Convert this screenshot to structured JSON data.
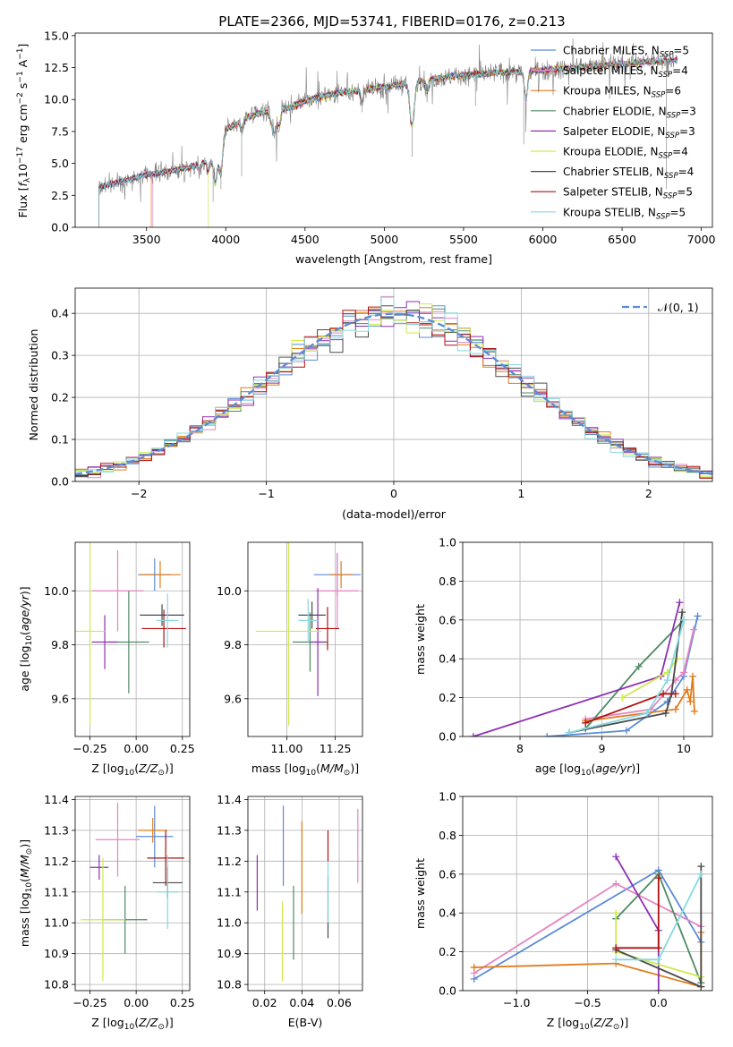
{
  "title": "PLATE=2366, MJD=53741, FIBERID=0176, z=0.213",
  "models": [
    {
      "name": "Chabrier MILES",
      "n": "5",
      "color": "#5b8bd9"
    },
    {
      "name": "Salpeter MILES",
      "n": "4",
      "color": "#e486c0"
    },
    {
      "name": "Kroupa MILES",
      "n": "6",
      "color": "#e07b1a"
    },
    {
      "name": "Chabrier ELODIE",
      "n": "3",
      "color": "#4e8a63"
    },
    {
      "name": "Salpeter ELODIE",
      "n": "3",
      "color": "#8e30b2"
    },
    {
      "name": "Kroupa ELODIE",
      "n": "4",
      "color": "#cfe94a"
    },
    {
      "name": "Chabrier STELIB",
      "n": "4",
      "color": "#4a4a4a"
    },
    {
      "name": "Salpeter STELIB",
      "n": "5",
      "color": "#b01010"
    },
    {
      "name": "Kroupa STELIB",
      "n": "5",
      "color": "#86d8e0"
    }
  ],
  "chart_data": [
    {
      "id": "spectrum",
      "type": "line",
      "xlabel": "wavelength [Angstrom, rest frame]",
      "ylabel": "Flux [f_λ 10^-17 erg cm^-2 s^-1 A^-1]",
      "xlim": [
        3050,
        7070
      ],
      "ylim": [
        0,
        15.2
      ],
      "xticks": [
        3500,
        4000,
        4500,
        5000,
        5500,
        6000,
        6500,
        7000
      ],
      "yticks": [
        0.0,
        2.5,
        5.0,
        7.5,
        10.0,
        12.5,
        15.0
      ],
      "legend": "upper right",
      "grid": false,
      "data_color": "#808080",
      "data_range": [
        3200,
        6850
      ],
      "continuum_wave": [
        3200,
        3300,
        3400,
        3500,
        3600,
        3700,
        3800,
        3900,
        3950,
        4000,
        4100,
        4200,
        4300,
        4400,
        4500,
        4700,
        4900,
        5100,
        5300,
        5500,
        5700,
        5900,
        6100,
        6300,
        6500,
        6700,
        6850
      ],
      "continuum_flux": [
        3.1,
        3.5,
        3.8,
        4.1,
        4.3,
        4.5,
        4.8,
        5.2,
        5.3,
        7.6,
        8.4,
        8.9,
        9.2,
        9.3,
        9.9,
        10.5,
        10.8,
        11.2,
        11.6,
        11.9,
        12.1,
        12.2,
        12.4,
        12.6,
        12.8,
        13.0,
        13.1
      ],
      "model_start": [
        3200,
        3540,
        3530,
        3200,
        3200,
        3890,
        3200,
        3200,
        3200
      ],
      "model_end": [
        6850,
        6850,
        6780,
        6850,
        6850,
        6780,
        6850,
        6850,
        6850
      ]
    },
    {
      "id": "residuals",
      "type": "histogram",
      "xlabel": "(data-model)/error",
      "ylabel": "Normed distribution",
      "xlim": [
        -2.5,
        2.5
      ],
      "ylim": [
        0,
        0.46
      ],
      "xticks": [
        -2,
        -1,
        0,
        1,
        2
      ],
      "yticks": [
        0.0,
        0.1,
        0.2,
        0.3,
        0.4
      ],
      "bin_width": 0.1,
      "grid": true,
      "reference_label": "𝒩(0, 1)",
      "reference_color": "#5b8bd9",
      "legend": "upper right"
    },
    {
      "id": "age_vs_Z",
      "type": "errorbar",
      "xlabel": "Z [log10(Z/Z⊙)]",
      "ylabel": "age  [log10(age/yr)]",
      "xlim": [
        -0.33,
        0.29
      ],
      "ylim": [
        9.46,
        10.18
      ],
      "xticks": [
        -0.25,
        0.0,
        0.25
      ],
      "yticks": [
        9.6,
        9.8,
        10.0
      ],
      "grid": true,
      "points": [
        {
          "x": 0.1,
          "y": 10.06,
          "xerr": 0.09,
          "yerr": 0.06
        },
        {
          "x": -0.1,
          "y": 10.0,
          "xerr": 0.14,
          "yerr": 0.15
        },
        {
          "x": 0.13,
          "y": 10.06,
          "xerr": 0.11,
          "yerr": 0.05
        },
        {
          "x": -0.04,
          "y": 9.81,
          "xerr": 0.11,
          "yerr": 0.19
        },
        {
          "x": -0.17,
          "y": 9.81,
          "xerr": 0.07,
          "yerr": 0.1
        },
        {
          "x": -0.25,
          "y": 9.85,
          "xerr": 0.08,
          "yerr": 0.35
        },
        {
          "x": 0.14,
          "y": 9.91,
          "xerr": 0.12,
          "yerr": 0.04
        },
        {
          "x": 0.15,
          "y": 9.86,
          "xerr": 0.12,
          "yerr": 0.07
        },
        {
          "x": 0.17,
          "y": 9.89,
          "xerr": 0.06,
          "yerr": 0.1
        }
      ]
    },
    {
      "id": "age_vs_mass",
      "type": "errorbar",
      "xlabel": "mass [log10(M/M⊙)]",
      "ylabel": "",
      "xlim": [
        10.8,
        11.39
      ],
      "ylim": [
        9.46,
        10.18
      ],
      "xticks": [
        11.0,
        11.25
      ],
      "yticks": [
        9.6,
        9.8,
        10.0
      ],
      "grid": true,
      "points": [
        {
          "x": 11.26,
          "y": 10.06,
          "xerr": 0.12,
          "yerr": 0.08
        },
        {
          "x": 11.26,
          "y": 10.0,
          "xerr": 0.11,
          "yerr": 0.14
        },
        {
          "x": 11.28,
          "y": 10.06,
          "xerr": 0.06,
          "yerr": 0.05
        },
        {
          "x": 11.12,
          "y": 9.81,
          "xerr": 0.09,
          "yerr": 0.11
        },
        {
          "x": 11.16,
          "y": 9.81,
          "xerr": 0.04,
          "yerr": 0.2
        },
        {
          "x": 11.01,
          "y": 9.85,
          "xerr": 0.17,
          "yerr": 0.35
        },
        {
          "x": 11.13,
          "y": 9.91,
          "xerr": 0.07,
          "yerr": 0.05
        },
        {
          "x": 11.21,
          "y": 9.86,
          "xerr": 0.06,
          "yerr": 0.08
        },
        {
          "x": 11.11,
          "y": 9.89,
          "xerr": 0.05,
          "yerr": 0.08
        }
      ]
    },
    {
      "id": "mass_weight_vs_age",
      "type": "line",
      "xlabel": "age  [log10(age/yr)]",
      "ylabel": "mass weight",
      "xlim": [
        7.3,
        10.35
      ],
      "ylim": [
        0,
        1.0
      ],
      "xticks": [
        8,
        9,
        10
      ],
      "yticks": [
        0.0,
        0.2,
        0.4,
        0.6,
        0.8,
        1.0
      ],
      "grid": true,
      "series": [
        {
          "x": [
            8.33,
            9.3,
            9.8,
            10.0,
            10.17
          ],
          "y": [
            0.0,
            0.03,
            0.18,
            0.31,
            0.62
          ]
        },
        {
          "x": [
            8.8,
            9.6,
            9.9,
            10.0,
            10.12
          ],
          "y": [
            0.09,
            0.14,
            0.29,
            0.33,
            0.55
          ]
        },
        {
          "x": [
            8.8,
            9.9,
            10.04,
            10.08,
            10.11,
            10.13
          ],
          "y": [
            0.08,
            0.14,
            0.24,
            0.18,
            0.31,
            0.13
          ]
        },
        {
          "x": [
            8.8,
            9.45,
            10.0
          ],
          "y": [
            0.04,
            0.36,
            0.6
          ]
        },
        {
          "x": [
            7.43,
            9.72,
            9.95
          ],
          "y": [
            0.0,
            0.31,
            0.69
          ]
        },
        {
          "x": [
            9.25,
            9.8,
            9.92
          ],
          "y": [
            0.2,
            0.33,
            0.4
          ]
        },
        {
          "x": [
            8.6,
            9.78,
            9.85,
            9.98
          ],
          "y": [
            0.02,
            0.12,
            0.22,
            0.64
          ]
        },
        {
          "x": [
            8.8,
            9.75,
            9.9
          ],
          "y": [
            0.07,
            0.22,
            0.22
          ]
        },
        {
          "x": [
            8.6,
            9.55,
            9.8,
            10.0
          ],
          "y": [
            0.02,
            0.12,
            0.29,
            0.6
          ]
        }
      ]
    },
    {
      "id": "mass_vs_Z",
      "type": "errorbar",
      "xlabel": "Z [log10(Z/Z⊙)]",
      "ylabel": "mass [log10(M/M⊙)]",
      "xlim": [
        -0.33,
        0.29
      ],
      "ylim": [
        10.78,
        11.41
      ],
      "xticks": [
        -0.25,
        0.0,
        0.25
      ],
      "yticks": [
        10.8,
        10.9,
        11.0,
        11.1,
        11.2,
        11.3,
        11.4
      ],
      "grid": true,
      "points": [
        {
          "x": 0.1,
          "y": 11.28,
          "xerr": 0.1,
          "yerr": 0.1
        },
        {
          "x": -0.1,
          "y": 11.27,
          "xerr": 0.12,
          "yerr": 0.12
        },
        {
          "x": 0.09,
          "y": 11.3,
          "xerr": 0.08,
          "yerr": 0.04
        },
        {
          "x": -0.06,
          "y": 11.01,
          "xerr": 0.12,
          "yerr": 0.11
        },
        {
          "x": -0.2,
          "y": 11.18,
          "xerr": 0.05,
          "yerr": 0.04
        },
        {
          "x": -0.18,
          "y": 11.01,
          "xerr": 0.12,
          "yerr": 0.2
        },
        {
          "x": 0.17,
          "y": 11.13,
          "xerr": 0.08,
          "yerr": 0.05
        },
        {
          "x": 0.16,
          "y": 11.21,
          "xerr": 0.1,
          "yerr": 0.09
        },
        {
          "x": 0.17,
          "y": 11.1,
          "xerr": 0.06,
          "yerr": 0.12
        }
      ]
    },
    {
      "id": "mass_vs_ebv",
      "type": "errorbar",
      "xlabel": "E(B-V)",
      "ylabel": "",
      "xlim": [
        0.011,
        0.0725
      ],
      "ylim": [
        10.78,
        11.41
      ],
      "xticks": [
        0.02,
        0.04,
        0.06
      ],
      "yticks": [
        10.8,
        10.9,
        11.0,
        11.1,
        11.2,
        11.3,
        11.4
      ],
      "grid": true,
      "points": [
        {
          "x": 0.03,
          "y": 11.25,
          "xerr": 0,
          "yerr": 0.13
        },
        {
          "x": 0.07,
          "y": 11.25,
          "xerr": 0,
          "yerr": 0.12
        },
        {
          "x": 0.04,
          "y": 11.18,
          "xerr": 0,
          "yerr": 0.15
        },
        {
          "x": 0.0355,
          "y": 11.0,
          "xerr": 0,
          "yerr": 0.12
        },
        {
          "x": 0.016,
          "y": 11.13,
          "xerr": 0,
          "yerr": 0.09
        },
        {
          "x": 0.0295,
          "y": 10.94,
          "xerr": 0,
          "yerr": 0.13
        },
        {
          "x": 0.054,
          "y": 11.05,
          "xerr": 0,
          "yerr": 0.1
        },
        {
          "x": 0.054,
          "y": 11.25,
          "xerr": 0,
          "yerr": 0.05
        },
        {
          "x": 0.054,
          "y": 11.1,
          "xerr": 0,
          "yerr": 0.1
        }
      ]
    },
    {
      "id": "mass_weight_vs_Z",
      "type": "line",
      "xlabel": "Z [log10(Z/Z⊙)]",
      "ylabel": "mass weight",
      "xlim": [
        -1.38,
        0.38
      ],
      "ylim": [
        0,
        1.0
      ],
      "xticks": [
        -1.0,
        -0.5,
        0.0
      ],
      "yticks": [
        0.0,
        0.2,
        0.4,
        0.6,
        0.8,
        1.0
      ],
      "grid": true,
      "series": [
        {
          "x": [
            -1.3,
            0.0,
            0.3
          ],
          "y": [
            0.06,
            0.62,
            0.25
          ]
        },
        {
          "x": [
            -1.3,
            -0.3,
            0.3
          ],
          "y": [
            0.09,
            0.55,
            0.33
          ]
        },
        {
          "x": [
            -1.3,
            -0.3,
            0.3,
            0.3
          ],
          "y": [
            0.12,
            0.14,
            0.02,
            0.3
          ]
        },
        {
          "x": [
            -0.3,
            0.0,
            0.3
          ],
          "y": [
            0.37,
            0.6,
            0.04
          ]
        },
        {
          "x": [
            -0.3,
            0.0,
            0.0
          ],
          "y": [
            0.69,
            0.31,
            0.0
          ]
        },
        {
          "x": [
            -0.3,
            -0.3,
            0.3
          ],
          "y": [
            0.4,
            0.2,
            0.07
          ]
        },
        {
          "x": [
            -0.3,
            0.3,
            0.3
          ],
          "y": [
            0.21,
            0.02,
            0.64
          ]
        },
        {
          "x": [
            -0.3,
            0.0,
            0.0
          ],
          "y": [
            0.22,
            0.22,
            0.58
          ]
        },
        {
          "x": [
            -0.3,
            0.0,
            0.3
          ],
          "y": [
            0.16,
            0.16,
            0.6
          ]
        }
      ]
    }
  ]
}
